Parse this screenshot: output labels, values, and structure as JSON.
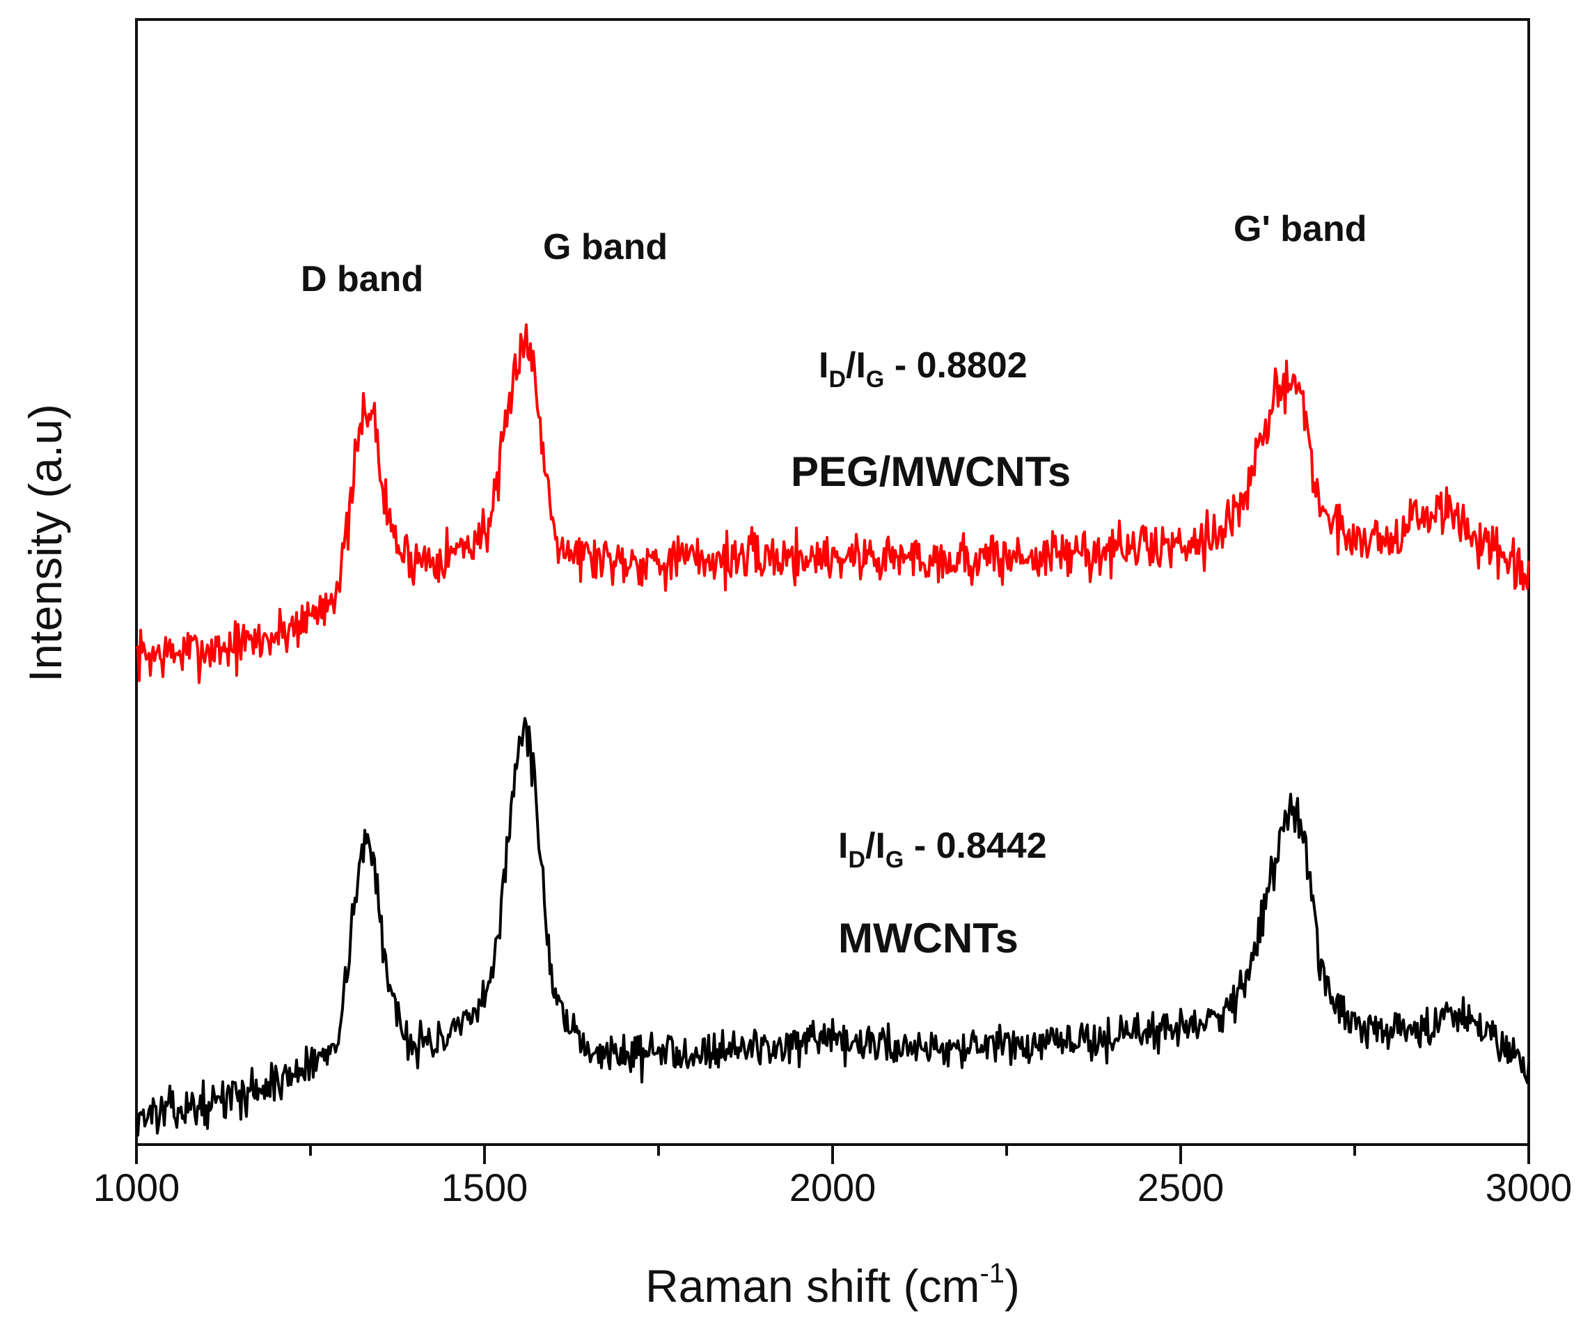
{
  "chart_data": {
    "type": "line",
    "title": "",
    "xlabel": "Raman shift (cm",
    "xlabel_sup": "-1",
    "xlabel_close": ")",
    "ylabel": "Intensity (a.u)",
    "xlim": [
      1000,
      3000
    ],
    "ylim": [
      0,
      100
    ],
    "x_ticks": [
      "1000",
      "1500",
      "2000",
      "2500",
      "3000"
    ],
    "x_tick_values": [
      1000,
      1500,
      2000,
      2500,
      3000
    ],
    "x_minor_step": 250,
    "y_ticks_shown": false,
    "series": [
      {
        "name": "PEG/MWCNTs",
        "color": "#ff0000",
        "noise": 1.4,
        "seed": 7,
        "x": [
          1000,
          1050,
          1100,
          1150,
          1200,
          1250,
          1270,
          1290,
          1300,
          1310,
          1320,
          1330,
          1340,
          1350,
          1360,
          1380,
          1400,
          1450,
          1480,
          1500,
          1510,
          1520,
          1530,
          1540,
          1550,
          1560,
          1570,
          1580,
          1590,
          1600,
          1620,
          1650,
          1700,
          1800,
          1900,
          2000,
          2100,
          2200,
          2300,
          2400,
          2500,
          2550,
          2580,
          2600,
          2620,
          2640,
          2650,
          2660,
          2670,
          2680,
          2690,
          2700,
          2720,
          2740,
          2760,
          2800,
          2840,
          2870,
          2900,
          2940,
          2970,
          3000
        ],
        "y": [
          43.5,
          43.6,
          44,
          44.4,
          45.2,
          47,
          48,
          50,
          53,
          58,
          63,
          66,
          65,
          60,
          56,
          52.6,
          52,
          52.5,
          53.5,
          54.5,
          56,
          59,
          63,
          67,
          71,
          72,
          69,
          64,
          59,
          55,
          52.8,
          52.3,
          52,
          52,
          52.2,
          52.3,
          52.2,
          52,
          52.3,
          52.8,
          53.4,
          54.4,
          56,
          59,
          63,
          67,
          68,
          68.3,
          67.5,
          64,
          60,
          57,
          55,
          54.2,
          54,
          53.8,
          55.5,
          56.5,
          55.5,
          53,
          51.5,
          50
        ]
      },
      {
        "name": "MWCNTs",
        "color": "#000000",
        "noise": 1.1,
        "seed": 13,
        "x": [
          1000,
          1050,
          1100,
          1150,
          1200,
          1250,
          1270,
          1290,
          1300,
          1310,
          1320,
          1330,
          1340,
          1350,
          1360,
          1380,
          1400,
          1450,
          1480,
          1500,
          1510,
          1520,
          1530,
          1540,
          1550,
          1560,
          1570,
          1580,
          1590,
          1600,
          1620,
          1650,
          1700,
          1800,
          1900,
          2000,
          2100,
          2200,
          2300,
          2400,
          2500,
          2550,
          2580,
          2600,
          2620,
          2640,
          2650,
          2660,
          2670,
          2680,
          2690,
          2700,
          2720,
          2740,
          2760,
          2800,
          2840,
          2870,
          2900,
          2940,
          2970,
          3000
        ],
        "y": [
          2.5,
          3,
          3.5,
          4.5,
          5.5,
          7,
          8,
          10,
          14,
          20,
          25,
          27,
          25.5,
          20,
          15,
          10.5,
          9,
          9.5,
          11,
          12.5,
          15,
          19,
          25,
          31,
          36,
          37,
          33,
          26,
          19,
          13,
          10,
          8.5,
          8,
          8.4,
          8.7,
          9,
          8.8,
          8.6,
          8.8,
          9.5,
          10.5,
          11.5,
          13,
          16,
          21,
          26,
          29,
          30,
          29.5,
          26,
          21,
          16,
          12.5,
          11,
          10.2,
          10,
          10.3,
          11,
          11.8,
          10.5,
          8.5,
          7
        ]
      }
    ],
    "annotations": {
      "d_band": "D band",
      "g_band": "G band",
      "g_prime_band": "G' band",
      "peg_ratio_i1": "I",
      "peg_ratio_s1": "D",
      "peg_ratio_slash": "/I",
      "peg_ratio_s2": "G",
      "peg_ratio_value": " - 0.8802",
      "peg_label": "PEG/MWCNTs",
      "mw_ratio_i1": "I",
      "mw_ratio_s1": "D",
      "mw_ratio_slash": "/I",
      "mw_ratio_s2": "G",
      "mw_ratio_value": " - 0.8442",
      "mw_label": "MWCNTs"
    }
  }
}
